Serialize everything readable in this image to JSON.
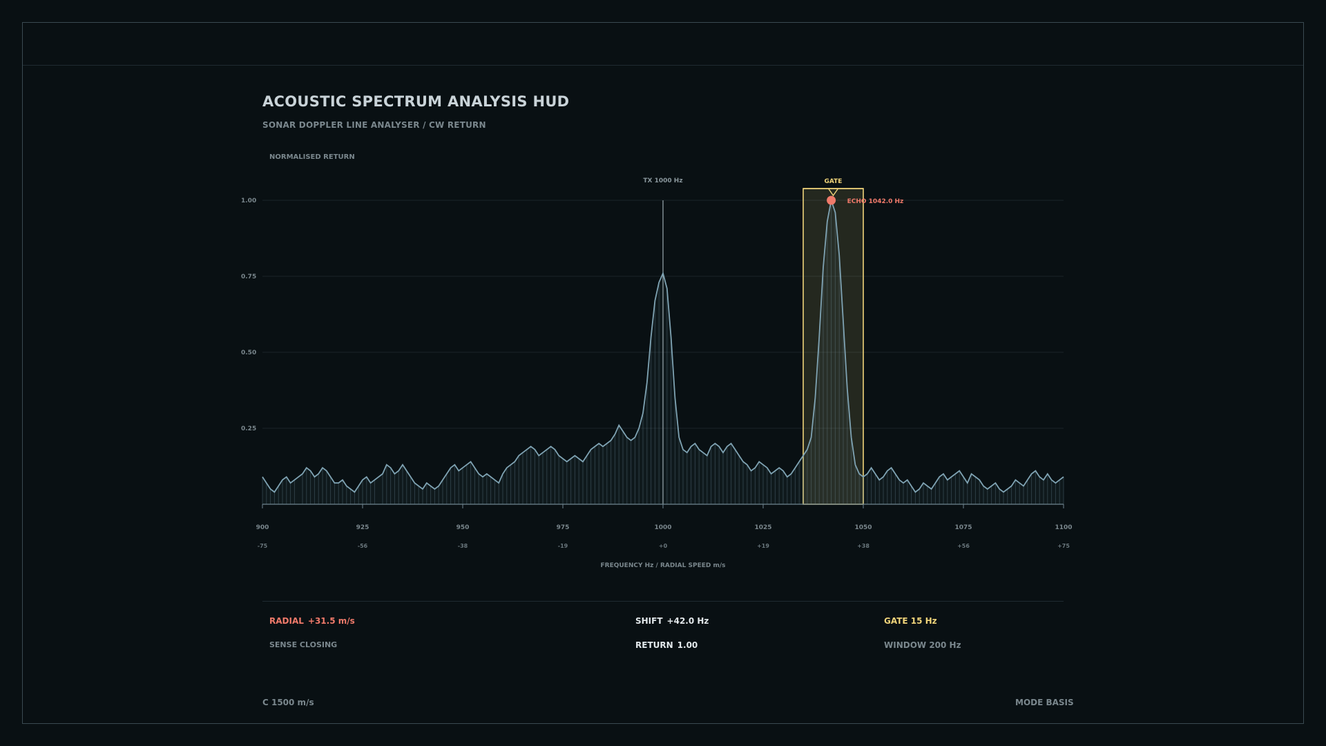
{
  "header": {
    "title": "ACOUSTIC SPECTRUM ANALYSIS HUD",
    "subtitle": "SONAR DOPPLER LINE ANALYSER / CW RETURN",
    "y_axis_label": "NORMALISED RETURN"
  },
  "chart_data": {
    "type": "area",
    "xlabel": "FREQUENCY Hz / RADIAL SPEED m/s",
    "ylabel": "NORMALISED RETURN",
    "xlim": [
      900,
      1100
    ],
    "ylim": [
      0,
      1.0
    ],
    "x_ticks": [
      900,
      925,
      950,
      975,
      1000,
      1025,
      1050,
      1075,
      1100
    ],
    "x_tick_labels": [
      "900",
      "925",
      "950",
      "975",
      "1000",
      "1025",
      "1050",
      "1075",
      "1100"
    ],
    "speed_tick_labels": [
      "-75",
      "-56",
      "-38",
      "-19",
      "+0",
      "+19",
      "+38",
      "+56",
      "+75"
    ],
    "y_ticks": [
      0.25,
      0.5,
      0.75,
      1.0
    ],
    "y_tick_labels": [
      "0.25",
      "0.50",
      "0.75",
      "1.00"
    ],
    "grid": true,
    "series": [
      {
        "points": [
          [
            900,
            0.09
          ],
          [
            901,
            0.07
          ],
          [
            902,
            0.05
          ],
          [
            903,
            0.04
          ],
          [
            904,
            0.06
          ],
          [
            905,
            0.08
          ],
          [
            906,
            0.09
          ],
          [
            907,
            0.07
          ],
          [
            908,
            0.08
          ],
          [
            910,
            0.1
          ],
          [
            911,
            0.12
          ],
          [
            912,
            0.11
          ],
          [
            913,
            0.09
          ],
          [
            914,
            0.1
          ],
          [
            915,
            0.12
          ],
          [
            916,
            0.11
          ],
          [
            917,
            0.09
          ],
          [
            918,
            0.07
          ],
          [
            919,
            0.07
          ],
          [
            920,
            0.08
          ],
          [
            921,
            0.06
          ],
          [
            922,
            0.05
          ],
          [
            923,
            0.04
          ],
          [
            924,
            0.06
          ],
          [
            925,
            0.08
          ],
          [
            926,
            0.09
          ],
          [
            927,
            0.07
          ],
          [
            928,
            0.08
          ],
          [
            930,
            0.1
          ],
          [
            931,
            0.13
          ],
          [
            932,
            0.12
          ],
          [
            933,
            0.1
          ],
          [
            934,
            0.11
          ],
          [
            935,
            0.13
          ],
          [
            936,
            0.11
          ],
          [
            937,
            0.09
          ],
          [
            938,
            0.07
          ],
          [
            939,
            0.06
          ],
          [
            940,
            0.05
          ],
          [
            941,
            0.07
          ],
          [
            942,
            0.06
          ],
          [
            943,
            0.05
          ],
          [
            944,
            0.06
          ],
          [
            945,
            0.08
          ],
          [
            946,
            0.1
          ],
          [
            947,
            0.12
          ],
          [
            948,
            0.13
          ],
          [
            949,
            0.11
          ],
          [
            950,
            0.12
          ],
          [
            951,
            0.13
          ],
          [
            952,
            0.14
          ],
          [
            953,
            0.12
          ],
          [
            954,
            0.1
          ],
          [
            955,
            0.09
          ],
          [
            956,
            0.1
          ],
          [
            957,
            0.09
          ],
          [
            958,
            0.08
          ],
          [
            959,
            0.07
          ],
          [
            960,
            0.1
          ],
          [
            961,
            0.12
          ],
          [
            962,
            0.13
          ],
          [
            963,
            0.14
          ],
          [
            964,
            0.16
          ],
          [
            965,
            0.17
          ],
          [
            966,
            0.18
          ],
          [
            967,
            0.19
          ],
          [
            968,
            0.18
          ],
          [
            969,
            0.16
          ],
          [
            970,
            0.17
          ],
          [
            971,
            0.18
          ],
          [
            972,
            0.19
          ],
          [
            973,
            0.18
          ],
          [
            974,
            0.16
          ],
          [
            975,
            0.15
          ],
          [
            976,
            0.14
          ],
          [
            977,
            0.15
          ],
          [
            978,
            0.16
          ],
          [
            979,
            0.15
          ],
          [
            980,
            0.14
          ],
          [
            981,
            0.16
          ],
          [
            982,
            0.18
          ],
          [
            983,
            0.19
          ],
          [
            984,
            0.2
          ],
          [
            985,
            0.19
          ],
          [
            986,
            0.2
          ],
          [
            987,
            0.21
          ],
          [
            988,
            0.23
          ],
          [
            989,
            0.26
          ],
          [
            990,
            0.24
          ],
          [
            991,
            0.22
          ],
          [
            992,
            0.21
          ],
          [
            993,
            0.22
          ],
          [
            994,
            0.25
          ],
          [
            995,
            0.3
          ],
          [
            996,
            0.4
          ],
          [
            997,
            0.55
          ],
          [
            998,
            0.67
          ],
          [
            999,
            0.73
          ],
          [
            1000,
            0.76
          ],
          [
            1001,
            0.71
          ],
          [
            1002,
            0.55
          ],
          [
            1003,
            0.35
          ],
          [
            1004,
            0.22
          ],
          [
            1005,
            0.18
          ],
          [
            1006,
            0.17
          ],
          [
            1007,
            0.19
          ],
          [
            1008,
            0.2
          ],
          [
            1009,
            0.18
          ],
          [
            1010,
            0.17
          ],
          [
            1011,
            0.16
          ],
          [
            1012,
            0.19
          ],
          [
            1013,
            0.2
          ],
          [
            1014,
            0.19
          ],
          [
            1015,
            0.17
          ],
          [
            1016,
            0.19
          ],
          [
            1017,
            0.2
          ],
          [
            1018,
            0.18
          ],
          [
            1019,
            0.16
          ],
          [
            1020,
            0.14
          ],
          [
            1021,
            0.13
          ],
          [
            1022,
            0.11
          ],
          [
            1023,
            0.12
          ],
          [
            1024,
            0.14
          ],
          [
            1025,
            0.13
          ],
          [
            1026,
            0.12
          ],
          [
            1027,
            0.1
          ],
          [
            1028,
            0.11
          ],
          [
            1029,
            0.12
          ],
          [
            1030,
            0.11
          ],
          [
            1031,
            0.09
          ],
          [
            1032,
            0.1
          ],
          [
            1033,
            0.12
          ],
          [
            1034,
            0.14
          ],
          [
            1035,
            0.16
          ],
          [
            1036,
            0.18
          ],
          [
            1037,
            0.22
          ],
          [
            1038,
            0.35
          ],
          [
            1039,
            0.55
          ],
          [
            1040,
            0.78
          ],
          [
            1041,
            0.93
          ],
          [
            1042,
            1.0
          ],
          [
            1043,
            0.96
          ],
          [
            1044,
            0.82
          ],
          [
            1045,
            0.6
          ],
          [
            1046,
            0.38
          ],
          [
            1047,
            0.22
          ],
          [
            1048,
            0.13
          ],
          [
            1049,
            0.1
          ],
          [
            1050,
            0.09
          ],
          [
            1051,
            0.1
          ],
          [
            1052,
            0.12
          ],
          [
            1053,
            0.1
          ],
          [
            1054,
            0.08
          ],
          [
            1055,
            0.09
          ],
          [
            1056,
            0.11
          ],
          [
            1057,
            0.12
          ],
          [
            1058,
            0.1
          ],
          [
            1059,
            0.08
          ],
          [
            1060,
            0.07
          ],
          [
            1061,
            0.08
          ],
          [
            1062,
            0.06
          ],
          [
            1063,
            0.04
          ],
          [
            1064,
            0.05
          ],
          [
            1065,
            0.07
          ],
          [
            1066,
            0.06
          ],
          [
            1067,
            0.05
          ],
          [
            1068,
            0.07
          ],
          [
            1069,
            0.09
          ],
          [
            1070,
            0.1
          ],
          [
            1071,
            0.08
          ],
          [
            1072,
            0.09
          ],
          [
            1073,
            0.1
          ],
          [
            1074,
            0.11
          ],
          [
            1075,
            0.09
          ],
          [
            1076,
            0.07
          ],
          [
            1077,
            0.1
          ],
          [
            1078,
            0.09
          ],
          [
            1079,
            0.08
          ],
          [
            1080,
            0.06
          ],
          [
            1081,
            0.05
          ],
          [
            1082,
            0.06
          ],
          [
            1083,
            0.07
          ],
          [
            1084,
            0.05
          ],
          [
            1085,
            0.04
          ],
          [
            1086,
            0.05
          ],
          [
            1087,
            0.06
          ],
          [
            1088,
            0.08
          ],
          [
            1089,
            0.07
          ],
          [
            1090,
            0.06
          ],
          [
            1091,
            0.08
          ],
          [
            1092,
            0.1
          ],
          [
            1093,
            0.11
          ],
          [
            1094,
            0.09
          ],
          [
            1095,
            0.08
          ],
          [
            1096,
            0.1
          ],
          [
            1097,
            0.08
          ],
          [
            1098,
            0.07
          ],
          [
            1099,
            0.08
          ],
          [
            1100,
            0.09
          ]
        ]
      }
    ],
    "annotations": {
      "tx_label": "TX 1000 Hz",
      "tx_freq": 1000,
      "gate_label": "GATE",
      "gate_range": [
        1035,
        1050
      ],
      "echo_label": "ECHO 1042.0 Hz",
      "echo_freq": 1042.0,
      "echo_value": 1.0
    }
  },
  "stats": {
    "radial_key": "RADIAL",
    "radial_value": "+31.5 m/s",
    "sense": "SENSE CLOSING",
    "shift_key": "SHIFT",
    "shift_value": "+42.0 Hz",
    "return_key": "RETURN",
    "return_value": "1.00",
    "gate": "GATE 15 Hz",
    "window": "WINDOW 200 Hz"
  },
  "footer": {
    "left": "C 1500 m/s",
    "right": "MODE BASIS"
  },
  "colors": {
    "background": "#091013",
    "line": "#7fa3b3",
    "gate": "#f0d47a",
    "echo": "#f07a6a",
    "grid": "#1b2529"
  }
}
